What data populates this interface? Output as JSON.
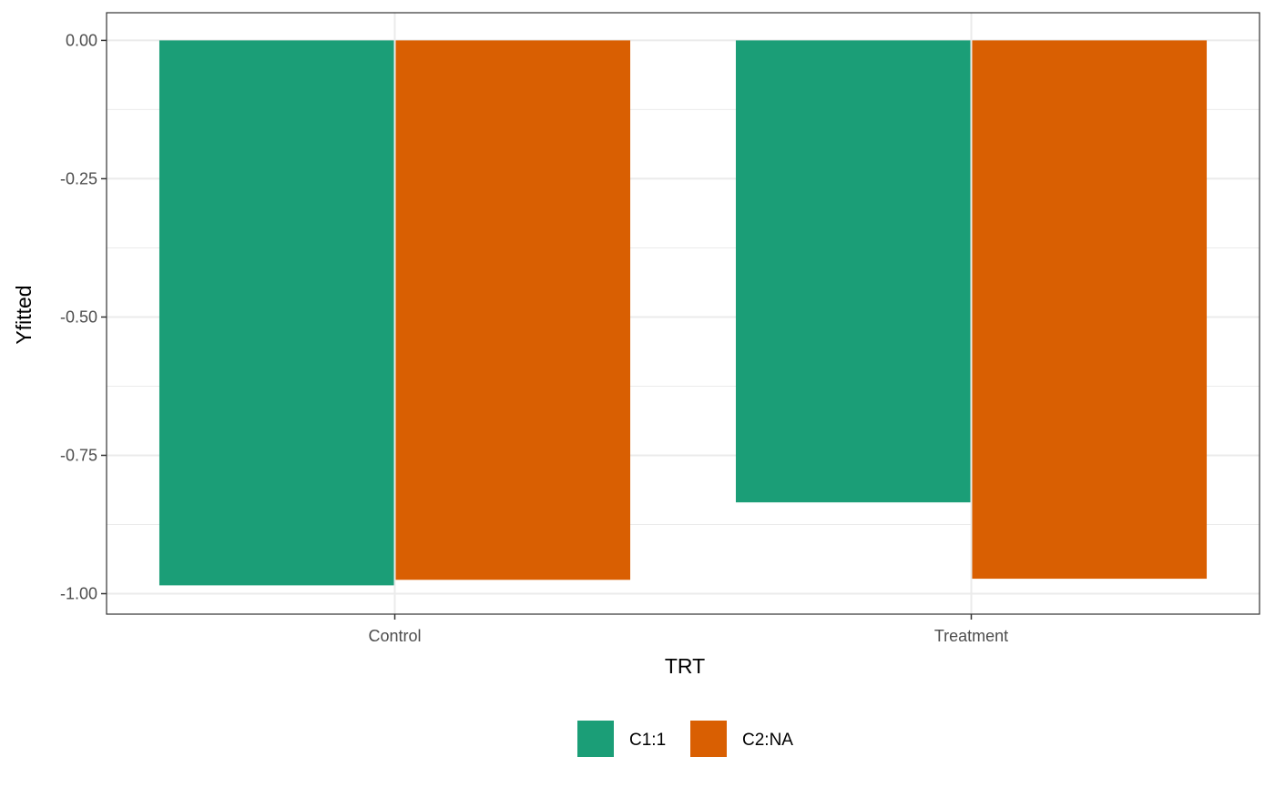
{
  "chart_data": {
    "type": "bar",
    "xlabel": "TRT",
    "ylabel": "Yfitted",
    "categories": [
      "Control",
      "Treatment"
    ],
    "series": [
      {
        "name": "C1:1",
        "color": "#1b9e77",
        "values": [
          -0.985,
          -0.835
        ]
      },
      {
        "name": "C2:NA",
        "color": "#d95f02",
        "values": [
          -0.975,
          -0.973
        ]
      }
    ],
    "ylim": [
      -1.037,
      0.05
    ],
    "yticks": [
      0.0,
      -0.25,
      -0.5,
      -0.75,
      -1.0
    ],
    "ytick_labels": [
      "0.00",
      "-0.25",
      "-0.50",
      "-0.75",
      "-1.00"
    ],
    "grid": true,
    "legend_position": "bottom"
  }
}
